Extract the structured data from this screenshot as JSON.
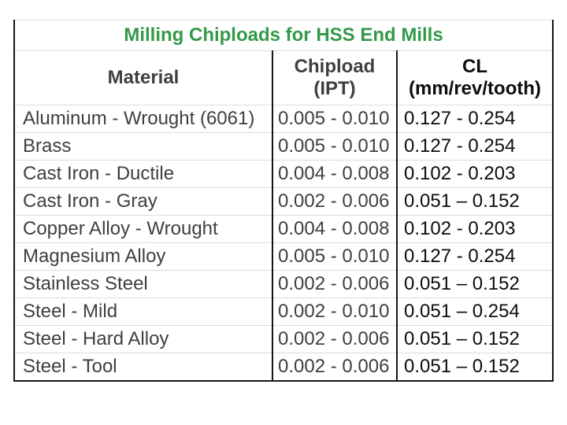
{
  "title": "Milling Chiploads for HSS End Mills",
  "header": {
    "material": "Material",
    "chipload_line1": "Chipload",
    "chipload_line2": "(IPT)",
    "cl_line1": "CL",
    "cl_line2": "(mm/rev/tooth)"
  },
  "rows": [
    {
      "material": "Aluminum - Wrought (6061)",
      "chipload_ipt": "0.005 - 0.010",
      "cl_mm": "0.127 - 0.254"
    },
    {
      "material": "Brass",
      "chipload_ipt": "0.005 - 0.010",
      "cl_mm": "0.127 - 0.254"
    },
    {
      "material": "Cast Iron - Ductile",
      "chipload_ipt": "0.004 - 0.008",
      "cl_mm": "0.102 - 0.203"
    },
    {
      "material": "Cast Iron - Gray",
      "chipload_ipt": "0.002 - 0.006",
      "cl_mm": "0.051 – 0.152"
    },
    {
      "material": "Copper Alloy - Wrought",
      "chipload_ipt": "0.004 - 0.008",
      "cl_mm": "0.102 - 0.203"
    },
    {
      "material": "Magnesium Alloy",
      "chipload_ipt": "0.005 - 0.010",
      "cl_mm": "0.127 - 0.254"
    },
    {
      "material": "Stainless Steel",
      "chipload_ipt": "0.002 - 0.006",
      "cl_mm": "0.051 – 0.152"
    },
    {
      "material": "Steel - Mild",
      "chipload_ipt": "0.002 - 0.010",
      "cl_mm": "0.051 – 0.254"
    },
    {
      "material": "Steel - Hard Alloy",
      "chipload_ipt": "0.002 - 0.006",
      "cl_mm": "0.051 – 0.152"
    },
    {
      "material": "Steel - Tool",
      "chipload_ipt": "0.002 - 0.006",
      "cl_mm": "0.051 – 0.152"
    }
  ],
  "colors": {
    "title-green": "#339947",
    "text-gray": "#3f3f3f",
    "text-black": "#0d0d0d",
    "frame-dark": "#161616",
    "rule-light": "#dcdcdc"
  }
}
